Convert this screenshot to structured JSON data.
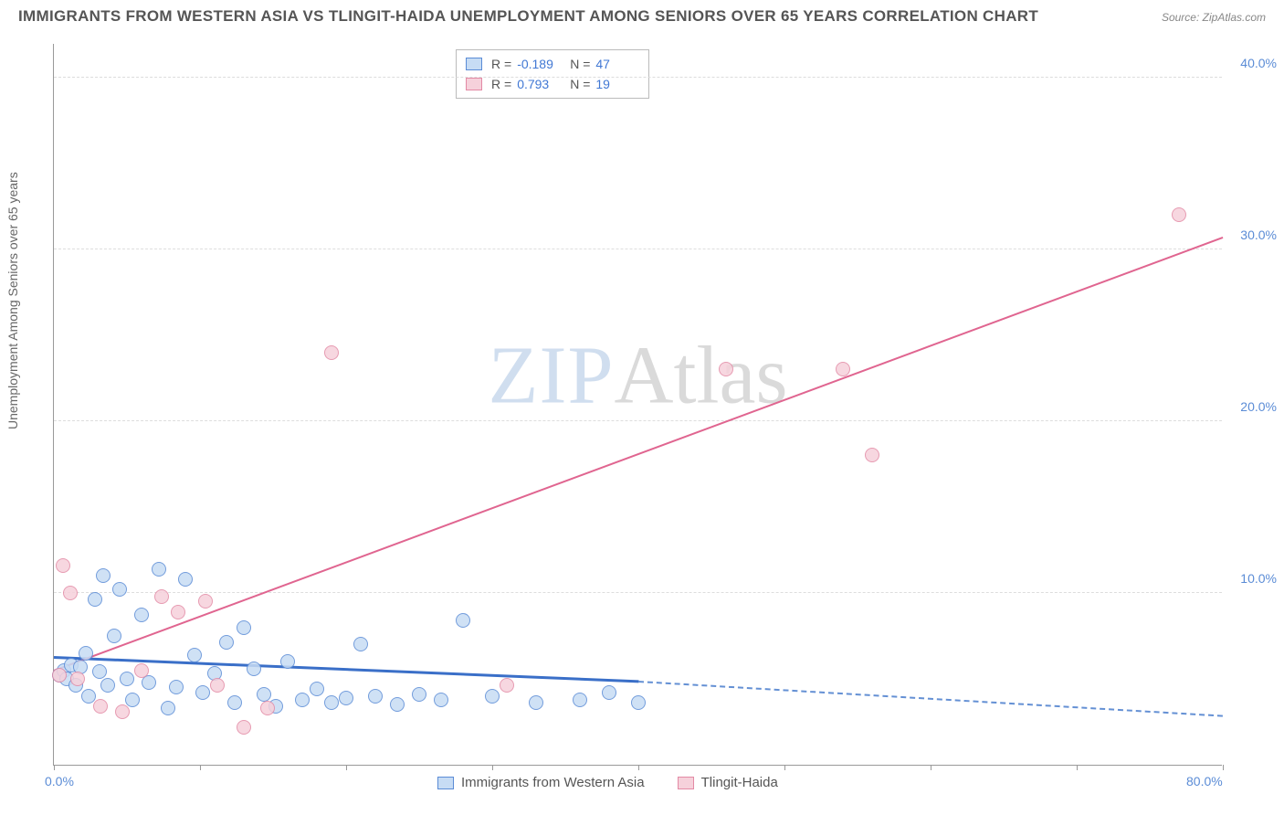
{
  "title": "IMMIGRANTS FROM WESTERN ASIA VS TLINGIT-HAIDA UNEMPLOYMENT AMONG SENIORS OVER 65 YEARS CORRELATION CHART",
  "source": "Source: ZipAtlas.com",
  "y_axis_label": "Unemployment Among Seniors over 65 years",
  "watermark": {
    "part1": "ZIP",
    "part2": "Atlas"
  },
  "chart": {
    "type": "scatter",
    "xlim": [
      0,
      80
    ],
    "ylim": [
      0,
      42
    ],
    "x_ticks": [
      0,
      10,
      20,
      30,
      40,
      50,
      60,
      70,
      80
    ],
    "x_tick_labels": {
      "0": "0.0%",
      "80": "80.0%"
    },
    "y_ticks": [
      10,
      20,
      30,
      40
    ],
    "y_tick_labels": {
      "10": "10.0%",
      "20": "20.0%",
      "30": "30.0%",
      "40": "40.0%"
    },
    "background_color": "#ffffff",
    "grid_color": "#dddddd",
    "series": [
      {
        "key": "western_asia",
        "label": "Immigrants from Western Asia",
        "fill": "#c7dcf4",
        "stroke": "#5b8cd6",
        "marker_r": 8,
        "R": "-0.189",
        "N": "47",
        "trend": {
          "x1": 0,
          "y1": 6.2,
          "x2": 40,
          "y2": 4.8,
          "color": "#3a6fc8",
          "width": 2.5,
          "dash_x1": 40,
          "dash_y1": 4.8,
          "dash_x2": 80,
          "dash_y2": 2.8,
          "dash_color": "#6490d4"
        },
        "points": [
          [
            0.4,
            5.2
          ],
          [
            0.7,
            5.5
          ],
          [
            0.9,
            5.0
          ],
          [
            1.2,
            5.8
          ],
          [
            1.5,
            4.6
          ],
          [
            1.8,
            5.7
          ],
          [
            2.2,
            6.5
          ],
          [
            2.4,
            4.0
          ],
          [
            2.8,
            9.6
          ],
          [
            3.1,
            5.4
          ],
          [
            3.4,
            11.0
          ],
          [
            3.7,
            4.6
          ],
          [
            4.1,
            7.5
          ],
          [
            4.5,
            10.2
          ],
          [
            5.0,
            5.0
          ],
          [
            5.4,
            3.8
          ],
          [
            6.0,
            8.7
          ],
          [
            6.5,
            4.8
          ],
          [
            7.2,
            11.4
          ],
          [
            7.8,
            3.3
          ],
          [
            8.4,
            4.5
          ],
          [
            9.0,
            10.8
          ],
          [
            9.6,
            6.4
          ],
          [
            10.2,
            4.2
          ],
          [
            11.0,
            5.3
          ],
          [
            11.8,
            7.1
          ],
          [
            12.4,
            3.6
          ],
          [
            13.0,
            8.0
          ],
          [
            13.7,
            5.6
          ],
          [
            14.4,
            4.1
          ],
          [
            15.2,
            3.4
          ],
          [
            16.0,
            6.0
          ],
          [
            17.0,
            3.8
          ],
          [
            18.0,
            4.4
          ],
          [
            19.0,
            3.6
          ],
          [
            20.0,
            3.9
          ],
          [
            21.0,
            7.0
          ],
          [
            22.0,
            4.0
          ],
          [
            23.5,
            3.5
          ],
          [
            25.0,
            4.1
          ],
          [
            26.5,
            3.8
          ],
          [
            28.0,
            8.4
          ],
          [
            30.0,
            4.0
          ],
          [
            33.0,
            3.6
          ],
          [
            36.0,
            3.8
          ],
          [
            38.0,
            4.2
          ],
          [
            40.0,
            3.6
          ]
        ]
      },
      {
        "key": "tlingit",
        "label": "Tlingit-Haida",
        "fill": "#f6d1db",
        "stroke": "#e38aa5",
        "marker_r": 8,
        "R": "0.793",
        "N": "19",
        "trend": {
          "x1": 0,
          "y1": 5.4,
          "x2": 80,
          "y2": 30.6,
          "color": "#e06590",
          "width": 2
        },
        "points": [
          [
            0.4,
            5.2
          ],
          [
            0.6,
            11.6
          ],
          [
            1.1,
            10.0
          ],
          [
            1.6,
            5.0
          ],
          [
            3.2,
            3.4
          ],
          [
            4.7,
            3.1
          ],
          [
            6.0,
            5.5
          ],
          [
            7.4,
            9.8
          ],
          [
            8.5,
            8.9
          ],
          [
            10.4,
            9.5
          ],
          [
            11.2,
            4.6
          ],
          [
            13.0,
            2.2
          ],
          [
            14.6,
            3.3
          ],
          [
            19.0,
            24.0
          ],
          [
            31.0,
            4.6
          ],
          [
            46.0,
            23.0
          ],
          [
            54.0,
            23.0
          ],
          [
            56.0,
            18.0
          ],
          [
            77.0,
            32.0
          ]
        ]
      }
    ]
  },
  "legend_bottom": [
    {
      "label": "Immigrants from Western Asia",
      "fill": "#c7dcf4",
      "stroke": "#5b8cd6"
    },
    {
      "label": "Tlingit-Haida",
      "fill": "#f6d1db",
      "stroke": "#e38aa5"
    }
  ]
}
